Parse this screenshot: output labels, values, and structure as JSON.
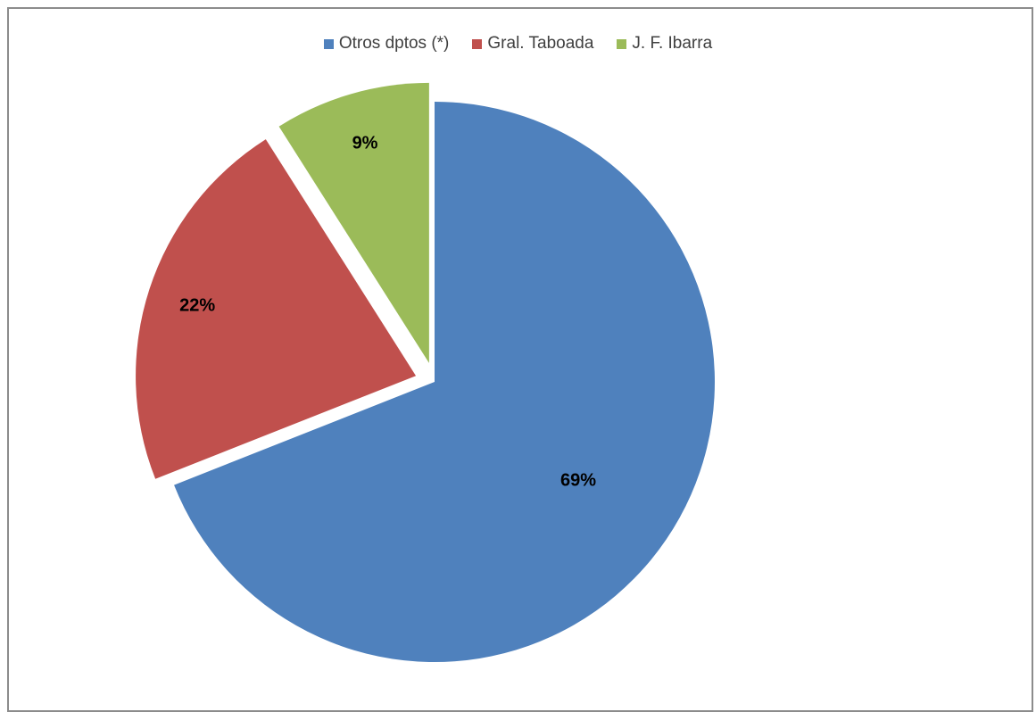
{
  "chart_data": {
    "type": "pie",
    "categories": [
      "Otros dptos (*)",
      "Gral. Taboada",
      "J. F. Ibarra"
    ],
    "values": [
      69,
      22,
      9
    ],
    "labels": [
      "69%",
      "22%",
      "9%"
    ],
    "colors": [
      "#4f81bd",
      "#c0504d",
      "#9bbb59"
    ],
    "legend_position": "top",
    "exploded": [
      false,
      true,
      true
    ]
  }
}
